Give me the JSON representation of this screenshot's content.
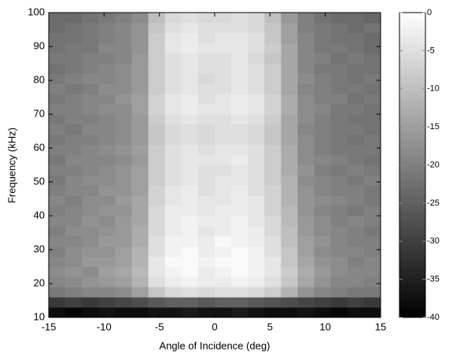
{
  "chart_data": {
    "type": "heatmap",
    "xlabel": "Angle of Incidence (deg)",
    "ylabel": "Frequency (kHz)",
    "xlim": [
      -15,
      15
    ],
    "ylim": [
      10,
      100
    ],
    "xticks": [
      -15,
      -10,
      -5,
      0,
      5,
      10,
      15
    ],
    "yticks": [
      10,
      20,
      30,
      40,
      50,
      60,
      70,
      80,
      90,
      100
    ],
    "colormap": "gray",
    "clim": [
      -40,
      0
    ],
    "cticks": [
      0,
      -5,
      -10,
      -15,
      -20,
      -25,
      -30,
      -35,
      -40
    ],
    "x": [
      -14.25,
      -12.75,
      -11.25,
      -9.75,
      -8.25,
      -6.75,
      -5.25,
      -3.75,
      -2.25,
      -0.75,
      0.75,
      2.25,
      3.75,
      5.25,
      6.75,
      8.25,
      9.75,
      11.25,
      12.75,
      14.25
    ],
    "y": [
      11.5,
      14.5,
      17.5,
      20.5,
      23.5,
      26.5,
      29.5,
      32.5,
      35.5,
      38.5,
      41.5,
      44.5,
      47.5,
      50.5,
      53.5,
      56.5,
      59.5,
      62.5,
      65.5,
      68.5,
      71.5,
      74.5,
      77.5,
      80.5,
      83.5,
      86.5,
      89.5,
      92.5,
      95.5,
      98.5
    ],
    "values": [
      [
        -38,
        -39,
        -38,
        -37,
        -38,
        -38,
        -37,
        -37,
        -36,
        -37,
        -37,
        -36,
        -37,
        -38,
        -38,
        -37,
        -38,
        -39,
        -38,
        -38
      ],
      [
        -31,
        -30,
        -31,
        -30,
        -29,
        -28,
        -26,
        -25,
        -25,
        -26,
        -25,
        -25,
        -26,
        -27,
        -28,
        -29,
        -30,
        -31,
        -30,
        -31
      ],
      [
        -21,
        -20,
        -19,
        -19,
        -18,
        -15,
        -9,
        -6,
        -5,
        -6,
        -5,
        -5,
        -6,
        -8,
        -12,
        -17,
        -19,
        -20,
        -21,
        -21
      ],
      [
        -19,
        -18,
        -17,
        -16,
        -15,
        -12,
        -5,
        -3,
        -2,
        -3,
        -3,
        -2,
        -3,
        -5,
        -9,
        -14,
        -17,
        -19,
        -19,
        -20
      ],
      [
        -18,
        -17,
        -18,
        -15,
        -14,
        -11,
        -4,
        -2,
        -1,
        -3,
        -2,
        -1,
        -2,
        -4,
        -8,
        -13,
        -16,
        -18,
        -19,
        -19
      ],
      [
        -19,
        -18,
        -16,
        -16,
        -15,
        -12,
        -4,
        -1,
        -1,
        -2,
        -1,
        -1,
        -2,
        -4,
        -9,
        -14,
        -17,
        -18,
        -20,
        -19
      ],
      [
        -20,
        -18,
        -17,
        -17,
        -15,
        -12,
        -5,
        -2,
        -1,
        -3,
        -2,
        -1,
        -2,
        -5,
        -9,
        -15,
        -18,
        -19,
        -19,
        -20
      ],
      [
        -19,
        -19,
        -18,
        -16,
        -16,
        -13,
        -5,
        -2,
        -2,
        -3,
        -1,
        -2,
        -3,
        -5,
        -10,
        -15,
        -17,
        -19,
        -20,
        -20
      ],
      [
        -20,
        -18,
        -18,
        -17,
        -16,
        -13,
        -6,
        -3,
        -2,
        -4,
        -3,
        -2,
        -3,
        -6,
        -10,
        -16,
        -18,
        -19,
        -20,
        -21
      ],
      [
        -19,
        -19,
        -17,
        -18,
        -16,
        -14,
        -6,
        -3,
        -2,
        -3,
        -3,
        -2,
        -4,
        -6,
        -11,
        -16,
        -18,
        -20,
        -19,
        -20
      ],
      [
        -20,
        -19,
        -18,
        -17,
        -17,
        -14,
        -6,
        -3,
        -3,
        -4,
        -3,
        -3,
        -4,
        -7,
        -11,
        -17,
        -19,
        -20,
        -21,
        -20
      ],
      [
        -19,
        -20,
        -18,
        -18,
        -16,
        -14,
        -7,
        -4,
        -3,
        -4,
        -4,
        -3,
        -4,
        -7,
        -12,
        -17,
        -18,
        -19,
        -20,
        -21
      ],
      [
        -20,
        -19,
        -19,
        -17,
        -17,
        -15,
        -7,
        -4,
        -3,
        -5,
        -4,
        -3,
        -5,
        -7,
        -12,
        -17,
        -19,
        -20,
        -20,
        -21
      ],
      [
        -21,
        -19,
        -18,
        -18,
        -17,
        -15,
        -8,
        -5,
        -4,
        -5,
        -4,
        -4,
        -5,
        -8,
        -12,
        -18,
        -19,
        -20,
        -21,
        -20
      ],
      [
        -20,
        -20,
        -19,
        -18,
        -17,
        -15,
        -8,
        -5,
        -4,
        -5,
        -5,
        -4,
        -5,
        -8,
        -13,
        -17,
        -20,
        -21,
        -20,
        -21
      ],
      [
        -21,
        -19,
        -19,
        -19,
        -18,
        -16,
        -8,
        -5,
        -4,
        -4,
        -4,
        -3,
        -5,
        -8,
        -13,
        -18,
        -19,
        -20,
        -21,
        -22
      ],
      [
        -20,
        -20,
        -19,
        -18,
        -17,
        -15,
        -8,
        -5,
        -4,
        -5,
        -4,
        -4,
        -5,
        -8,
        -13,
        -18,
        -20,
        -21,
        -21,
        -21
      ],
      [
        -21,
        -20,
        -20,
        -19,
        -18,
        -16,
        -9,
        -6,
        -5,
        -6,
        -5,
        -5,
        -6,
        -9,
        -14,
        -18,
        -20,
        -21,
        -22,
        -21
      ],
      [
        -20,
        -21,
        -19,
        -19,
        -18,
        -16,
        -9,
        -6,
        -5,
        -6,
        -5,
        -5,
        -6,
        -9,
        -14,
        -19,
        -20,
        -21,
        -21,
        -22
      ],
      [
        -21,
        -20,
        -20,
        -19,
        -18,
        -16,
        -8,
        -5,
        -4,
        -5,
        -5,
        -4,
        -5,
        -8,
        -14,
        -18,
        -20,
        -21,
        -22,
        -22
      ],
      [
        -20,
        -20,
        -19,
        -18,
        -18,
        -15,
        -7,
        -4,
        -3,
        -4,
        -4,
        -3,
        -4,
        -7,
        -13,
        -18,
        -19,
        -21,
        -21,
        -22
      ],
      [
        -21,
        -20,
        -19,
        -19,
        -17,
        -15,
        -7,
        -4,
        -3,
        -5,
        -4,
        -3,
        -4,
        -7,
        -13,
        -18,
        -20,
        -20,
        -22,
        -21
      ],
      [
        -20,
        -21,
        -20,
        -18,
        -18,
        -16,
        -8,
        -5,
        -4,
        -5,
        -5,
        -4,
        -5,
        -8,
        -14,
        -19,
        -20,
        -21,
        -21,
        -22
      ],
      [
        -21,
        -20,
        -19,
        -19,
        -18,
        -16,
        -8,
        -5,
        -4,
        -6,
        -5,
        -4,
        -5,
        -8,
        -14,
        -18,
        -20,
        -21,
        -22,
        -21
      ],
      [
        -22,
        -21,
        -20,
        -19,
        -18,
        -16,
        -8,
        -5,
        -4,
        -5,
        -5,
        -4,
        -5,
        -8,
        -14,
        -19,
        -21,
        -21,
        -22,
        -22
      ],
      [
        -21,
        -21,
        -20,
        -20,
        -19,
        -16,
        -8,
        -5,
        -4,
        -5,
        -5,
        -4,
        -6,
        -9,
        -14,
        -19,
        -20,
        -22,
        -21,
        -22
      ],
      [
        -22,
        -21,
        -21,
        -19,
        -19,
        -17,
        -8,
        -4,
        -3,
        -4,
        -4,
        -4,
        -5,
        -8,
        -14,
        -19,
        -21,
        -21,
        -22,
        -23
      ],
      [
        -22,
        -22,
        -21,
        -20,
        -19,
        -17,
        -8,
        -4,
        -3,
        -5,
        -4,
        -4,
        -5,
        -9,
        -15,
        -19,
        -21,
        -22,
        -22,
        -23
      ],
      [
        -23,
        -22,
        -21,
        -20,
        -19,
        -17,
        -9,
        -5,
        -4,
        -5,
        -5,
        -5,
        -6,
        -9,
        -15,
        -20,
        -21,
        -22,
        -23,
        -22
      ],
      [
        -23,
        -23,
        -22,
        -21,
        -20,
        -18,
        -10,
        -6,
        -5,
        -6,
        -6,
        -5,
        -6,
        -10,
        -16,
        -20,
        -22,
        -23,
        -23,
        -24
      ]
    ]
  }
}
